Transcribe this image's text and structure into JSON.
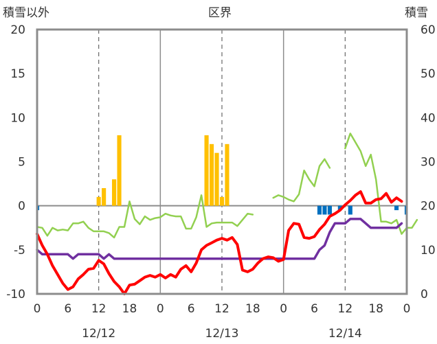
{
  "chart_data": {
    "type": "line",
    "title": "区界",
    "ylabel_left": "積雪以外",
    "ylabel_right": "積雪",
    "ylim_left": [
      -10,
      20
    ],
    "ylim_right": [
      0,
      60
    ],
    "yticks_left": [
      "-10",
      "-5",
      "0",
      "5",
      "10",
      "15",
      "20"
    ],
    "yticks_right": [
      "0",
      "10",
      "20",
      "30",
      "40",
      "50",
      "60"
    ],
    "xlim_hours": [
      0,
      72
    ],
    "xtick_labels": [
      "0",
      "6",
      "12",
      "18",
      "0",
      "6",
      "12",
      "18",
      "0",
      "6",
      "12",
      "18",
      "0"
    ],
    "date_labels": [
      "12/12",
      "12/13",
      "12/14"
    ],
    "grid": "dashed verticals every 12 h, solid at day boundaries, horizontal line at 0",
    "legend": "none",
    "colors": {
      "temperature": "#ff0000",
      "snow_depth": "#7030a0",
      "wind": "#92d050",
      "precipitation": "#ffc000",
      "snow_depth_change": "#0070c0"
    },
    "series": [
      {
        "key": "temperature",
        "axis": "left",
        "values": [
          -3.2,
          -4.5,
          -5.5,
          -6.8,
          -7.8,
          -8.8,
          -9.5,
          -9.2,
          -8.3,
          -7.8,
          -7.2,
          -7.1,
          -6.2,
          -6.6,
          -7.7,
          -8.6,
          -9.2,
          -10.0,
          -9.0,
          -8.9,
          -8.5,
          -8.1,
          -7.9,
          -8.1,
          -7.8,
          -8.2,
          -7.8,
          -8.1,
          -7.2,
          -6.8,
          -7.5,
          -6.5,
          -5.0,
          -4.5,
          -4.2,
          -3.9,
          -3.7,
          -3.9,
          -3.6,
          -4.4,
          -7.3,
          -7.5,
          -7.2,
          -6.5,
          -6.0,
          -5.8,
          -5.9,
          -6.3,
          -6.1,
          -2.8,
          -2.0,
          -2.1,
          -3.6,
          -3.7,
          -3.5,
          -2.7,
          -2.1,
          -1.2,
          -0.9,
          -0.5,
          0.1,
          0.6,
          1.2,
          1.6,
          0.3,
          0.3,
          0.7,
          0.8,
          1.4,
          0.4,
          0.9,
          0.5
        ]
      },
      {
        "key": "snow_depth",
        "axis": "right",
        "values": [
          10,
          9,
          9,
          9,
          9,
          9,
          9,
          8,
          9,
          9,
          9,
          9,
          9,
          8,
          9,
          8,
          8,
          8,
          8,
          8,
          8,
          8,
          8,
          8,
          8,
          8,
          8,
          8,
          8,
          8,
          8,
          8,
          8,
          8,
          8,
          8,
          8,
          8,
          8,
          8,
          8,
          8,
          8,
          8,
          8,
          8,
          8,
          8,
          8,
          8,
          8,
          8,
          8,
          8,
          8,
          10,
          11,
          14,
          16,
          16,
          16,
          17,
          17,
          17,
          16,
          15,
          15,
          15,
          15,
          15,
          15,
          16
        ]
      },
      {
        "key": "wind",
        "axis": "left",
        "values": [
          -2.4,
          -2.5,
          -3.4,
          -2.5,
          -2.8,
          -2.7,
          -2.8,
          -2.0,
          -2.0,
          -1.8,
          -2.5,
          -2.9,
          -2.9,
          -2.9,
          -3.1,
          -3.6,
          -2.4,
          -2.4,
          0.5,
          -1.5,
          -2.1,
          -1.2,
          -1.6,
          -1.4,
          -1.3,
          -0.9,
          -1.1,
          -1.2,
          -1.2,
          -2.6,
          -2.6,
          -1.3,
          1.2,
          -2.4,
          -2.0,
          -1.9,
          -1.9,
          -1.9,
          -1.9,
          -2.3,
          -1.6,
          -0.9,
          -1.0,
          null,
          null,
          null,
          0.9,
          1.2,
          1.0,
          0.7,
          0.5,
          1.3,
          4.0,
          3.0,
          2.2,
          4.5,
          5.3,
          4.3,
          null,
          null,
          6.5,
          8.2,
          7.2,
          6.2,
          4.5,
          5.8,
          3.0,
          -1.8,
          -1.8,
          -2.0,
          -1.6,
          -3.2,
          -2.5,
          -2.5,
          -1.6
        ]
      },
      {
        "key": "precipitation",
        "axis": "left",
        "bars": [
          {
            "h": 12,
            "v": 1
          },
          {
            "h": 13,
            "v": 2
          },
          {
            "h": 15,
            "v": 3
          },
          {
            "h": 16,
            "v": 8
          },
          {
            "h": 33,
            "v": 8
          },
          {
            "h": 34,
            "v": 7
          },
          {
            "h": 35,
            "v": 6
          },
          {
            "h": 36,
            "v": 1
          },
          {
            "h": 37,
            "v": 7
          }
        ]
      },
      {
        "key": "snow_depth_change",
        "axis": "left",
        "bars": [
          {
            "h": 0,
            "v": -0.5
          },
          {
            "h": 55,
            "v": -1
          },
          {
            "h": 56,
            "v": -1
          },
          {
            "h": 57,
            "v": -1
          },
          {
            "h": 59,
            "v": -0.5
          },
          {
            "h": 61,
            "v": -1
          },
          {
            "h": 70,
            "v": -0.5
          },
          {
            "h": 72,
            "v": -1
          }
        ]
      }
    ]
  }
}
